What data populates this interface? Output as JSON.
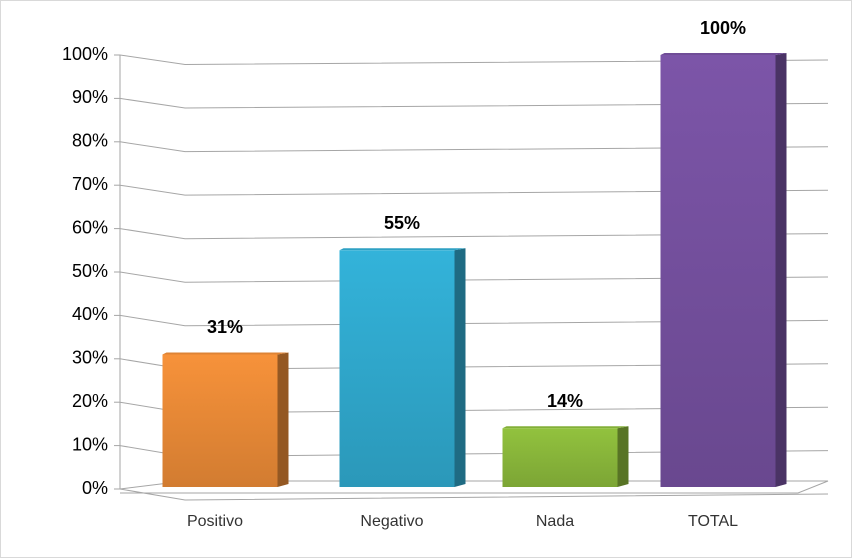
{
  "chart_data": {
    "type": "bar3d",
    "categories": [
      "Positivo",
      "Negativo",
      "Nada",
      "TOTAL"
    ],
    "values": [
      31,
      55,
      14,
      100
    ],
    "value_labels": [
      "31%",
      "55%",
      "14%",
      "100%"
    ],
    "colors": [
      "#f7923a",
      "#33b3da",
      "#92c23e",
      "#7c55a8"
    ],
    "ylim": [
      0,
      100
    ],
    "yticks": [
      {
        "value": 0,
        "label": "0%"
      },
      {
        "value": 10,
        "label": "10%"
      },
      {
        "value": 20,
        "label": "20%"
      },
      {
        "value": 30,
        "label": "30%"
      },
      {
        "value": 40,
        "label": "40%"
      },
      {
        "value": 50,
        "label": "50%"
      },
      {
        "value": 60,
        "label": "60%"
      },
      {
        "value": 70,
        "label": "70%"
      },
      {
        "value": 80,
        "label": "80%"
      },
      {
        "value": 90,
        "label": "90%"
      },
      {
        "value": 100,
        "label": "100%"
      }
    ],
    "grid": true
  }
}
